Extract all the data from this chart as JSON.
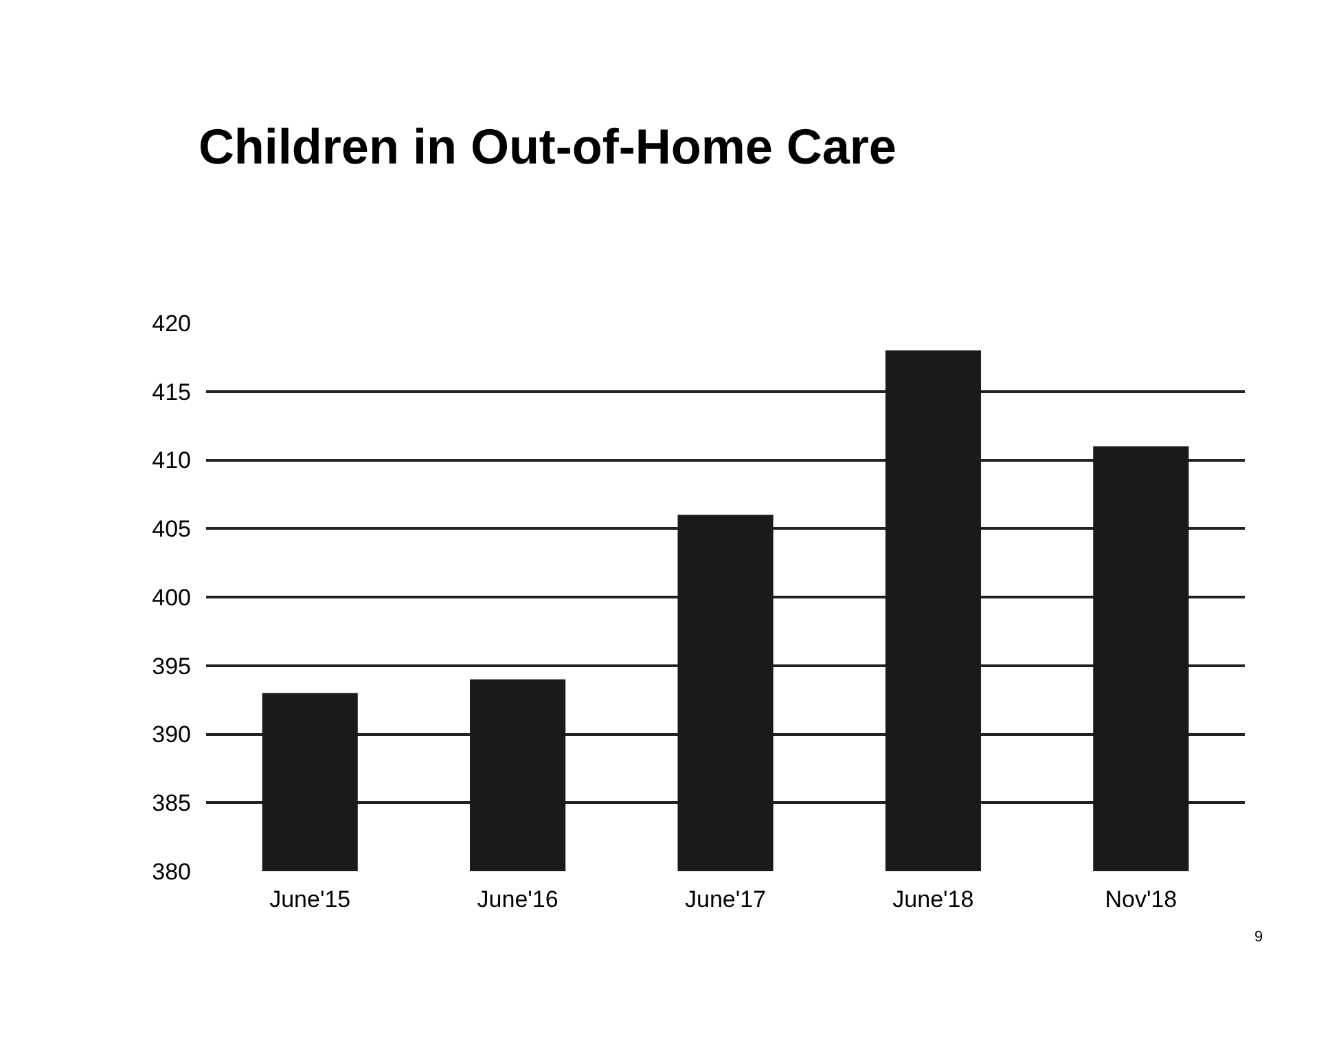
{
  "chart_data": {
    "type": "bar",
    "title": "Children in Out-of-Home Care",
    "categories": [
      "June'15",
      "June'16",
      "June'17",
      "June'18",
      "Nov'18"
    ],
    "values": [
      393,
      394,
      406,
      418,
      411
    ],
    "color": "#1a1a1a",
    "ylim": [
      380,
      420
    ],
    "yticks": [
      380,
      385,
      390,
      395,
      400,
      405,
      410,
      415,
      420
    ],
    "grid": "y",
    "annotations": [
      "9"
    ]
  }
}
